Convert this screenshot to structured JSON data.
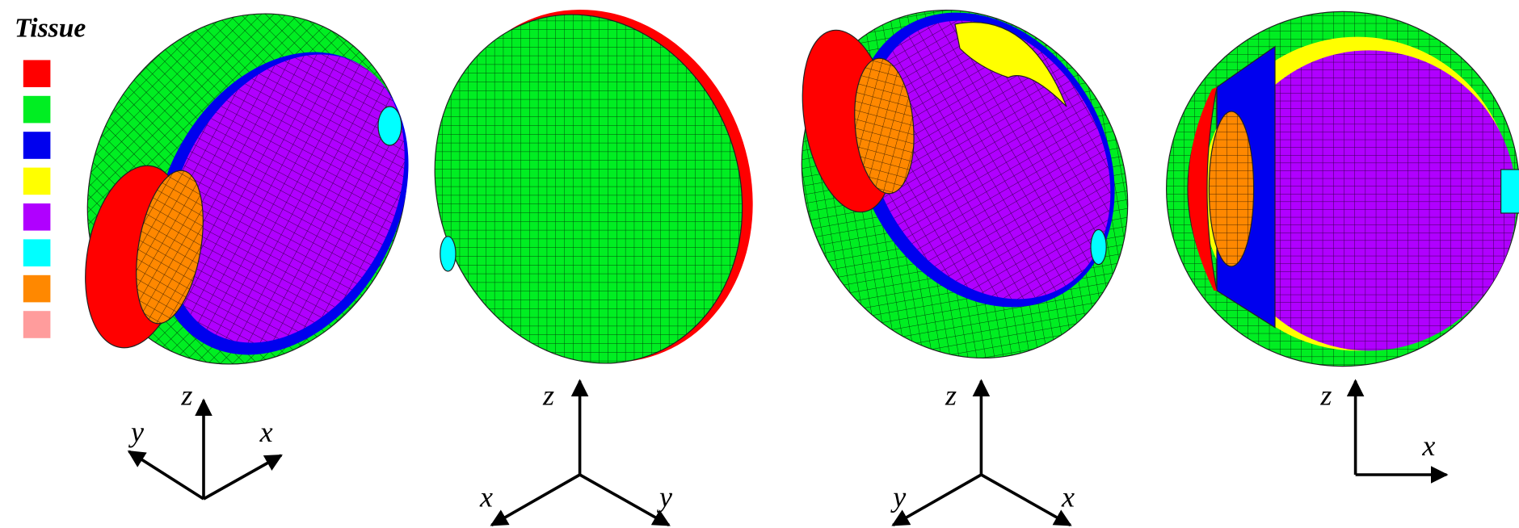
{
  "legend": {
    "title": "Tissue",
    "colors": [
      "#ff0000",
      "#00ee22",
      "#0000ee",
      "#ffff00",
      "#b000ff",
      "#00ffff",
      "#ff8800",
      "#ff9c9c"
    ]
  },
  "views": [
    {
      "axes": [
        "z",
        "y",
        "x"
      ]
    },
    {
      "axes": [
        "z",
        "x",
        "y"
      ]
    },
    {
      "axes": [
        "z",
        "y",
        "x"
      ]
    },
    {
      "axes": [
        "z",
        "x"
      ]
    }
  ]
}
